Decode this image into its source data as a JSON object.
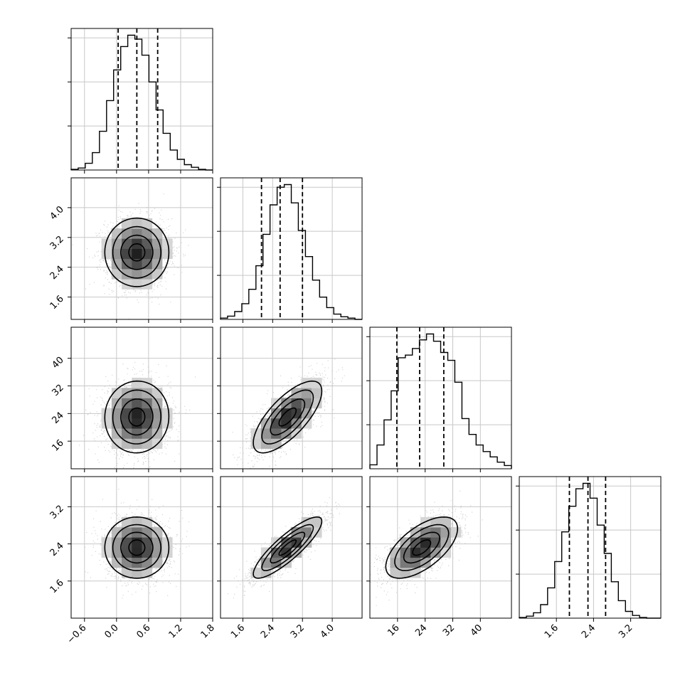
{
  "chart_data": {
    "type": "corner",
    "style": {
      "ink": "#000000",
      "points": "#b4b4b4",
      "grid": "#c8c8c8",
      "background": "#ffffff"
    },
    "grid": true,
    "variables": [
      {
        "range": [
          -0.85,
          1.8
        ],
        "ticks": [
          "−0.6",
          "0.0",
          "0.6",
          "1.2",
          "1.8"
        ],
        "tick_values": [
          -0.6,
          0.0,
          0.6,
          1.2,
          1.8
        ]
      },
      {
        "range": [
          1.0,
          4.8
        ],
        "ticks": [
          "1.6",
          "2.4",
          "3.2",
          "4.0"
        ],
        "tick_values": [
          1.6,
          2.4,
          3.2,
          4.0
        ]
      },
      {
        "range": [
          8.0,
          49.0
        ],
        "ticks": [
          "16",
          "24",
          "32",
          "40"
        ],
        "tick_values": [
          16,
          24,
          32,
          40
        ]
      },
      {
        "range": [
          0.8,
          3.85
        ],
        "ticks": [
          "1.6",
          "2.4",
          "3.2"
        ],
        "tick_values": [
          1.6,
          2.4,
          3.2
        ]
      }
    ],
    "histograms": [
      {
        "var": 0,
        "edges": [
          -0.85,
          1.8
        ],
        "counts": [
          1,
          3,
          10,
          26,
          58,
          104,
          150,
          185,
          202,
          196,
          172,
          132,
          90,
          55,
          30,
          16,
          8,
          4,
          1,
          0
        ],
        "quantiles": [
          0.03,
          0.38,
          0.77
        ]
      },
      {
        "var": 1,
        "edges": [
          1.0,
          4.8
        ],
        "counts": [
          2,
          5,
          12,
          24,
          46,
          82,
          130,
          175,
          202,
          206,
          178,
          136,
          96,
          60,
          34,
          18,
          8,
          4,
          2,
          0
        ],
        "quantiles": [
          2.1,
          2.6,
          3.2
        ]
      },
      {
        "var": 2,
        "edges": [
          8.0,
          49.0
        ],
        "counts": [
          6,
          36,
          74,
          118,
          168,
          172,
          182,
          195,
          204,
          193,
          176,
          164,
          131,
          76,
          52,
          36,
          26,
          18,
          10,
          5
        ],
        "quantiles": [
          15.8,
          22.4,
          29.4
        ]
      },
      {
        "var": 3,
        "edges": [
          0.8,
          3.85
        ],
        "counts": [
          1,
          3,
          8,
          20,
          45,
          84,
          128,
          166,
          192,
          200,
          178,
          138,
          96,
          54,
          26,
          10,
          4,
          1,
          0,
          0
        ],
        "quantiles": [
          1.88,
          2.28,
          2.66
        ]
      }
    ],
    "pairs": [
      {
        "x": 0,
        "y": 1,
        "mean": [
          0.38,
          2.8
        ],
        "sd": [
          0.3,
          0.46
        ],
        "rho": 0.0
      },
      {
        "x": 0,
        "y": 2,
        "mean": [
          0.38,
          23.0
        ],
        "sd": [
          0.3,
          5.2
        ],
        "rho": 0.02
      },
      {
        "x": 1,
        "y": 2,
        "mean": [
          2.8,
          23.0
        ],
        "sd": [
          0.46,
          5.2
        ],
        "rho": 0.72
      },
      {
        "x": 0,
        "y": 3,
        "mean": [
          0.38,
          2.32
        ],
        "sd": [
          0.3,
          0.33
        ],
        "rho": 0.0
      },
      {
        "x": 1,
        "y": 3,
        "mean": [
          2.8,
          2.32
        ],
        "sd": [
          0.46,
          0.33
        ],
        "rho": 0.86
      },
      {
        "x": 2,
        "y": 3,
        "mean": [
          23.0,
          2.32
        ],
        "sd": [
          5.2,
          0.33
        ],
        "rho": 0.62
      }
    ],
    "contour_levels_sigma": [
      0.5,
      1.0,
      1.5,
      2.0
    ]
  }
}
